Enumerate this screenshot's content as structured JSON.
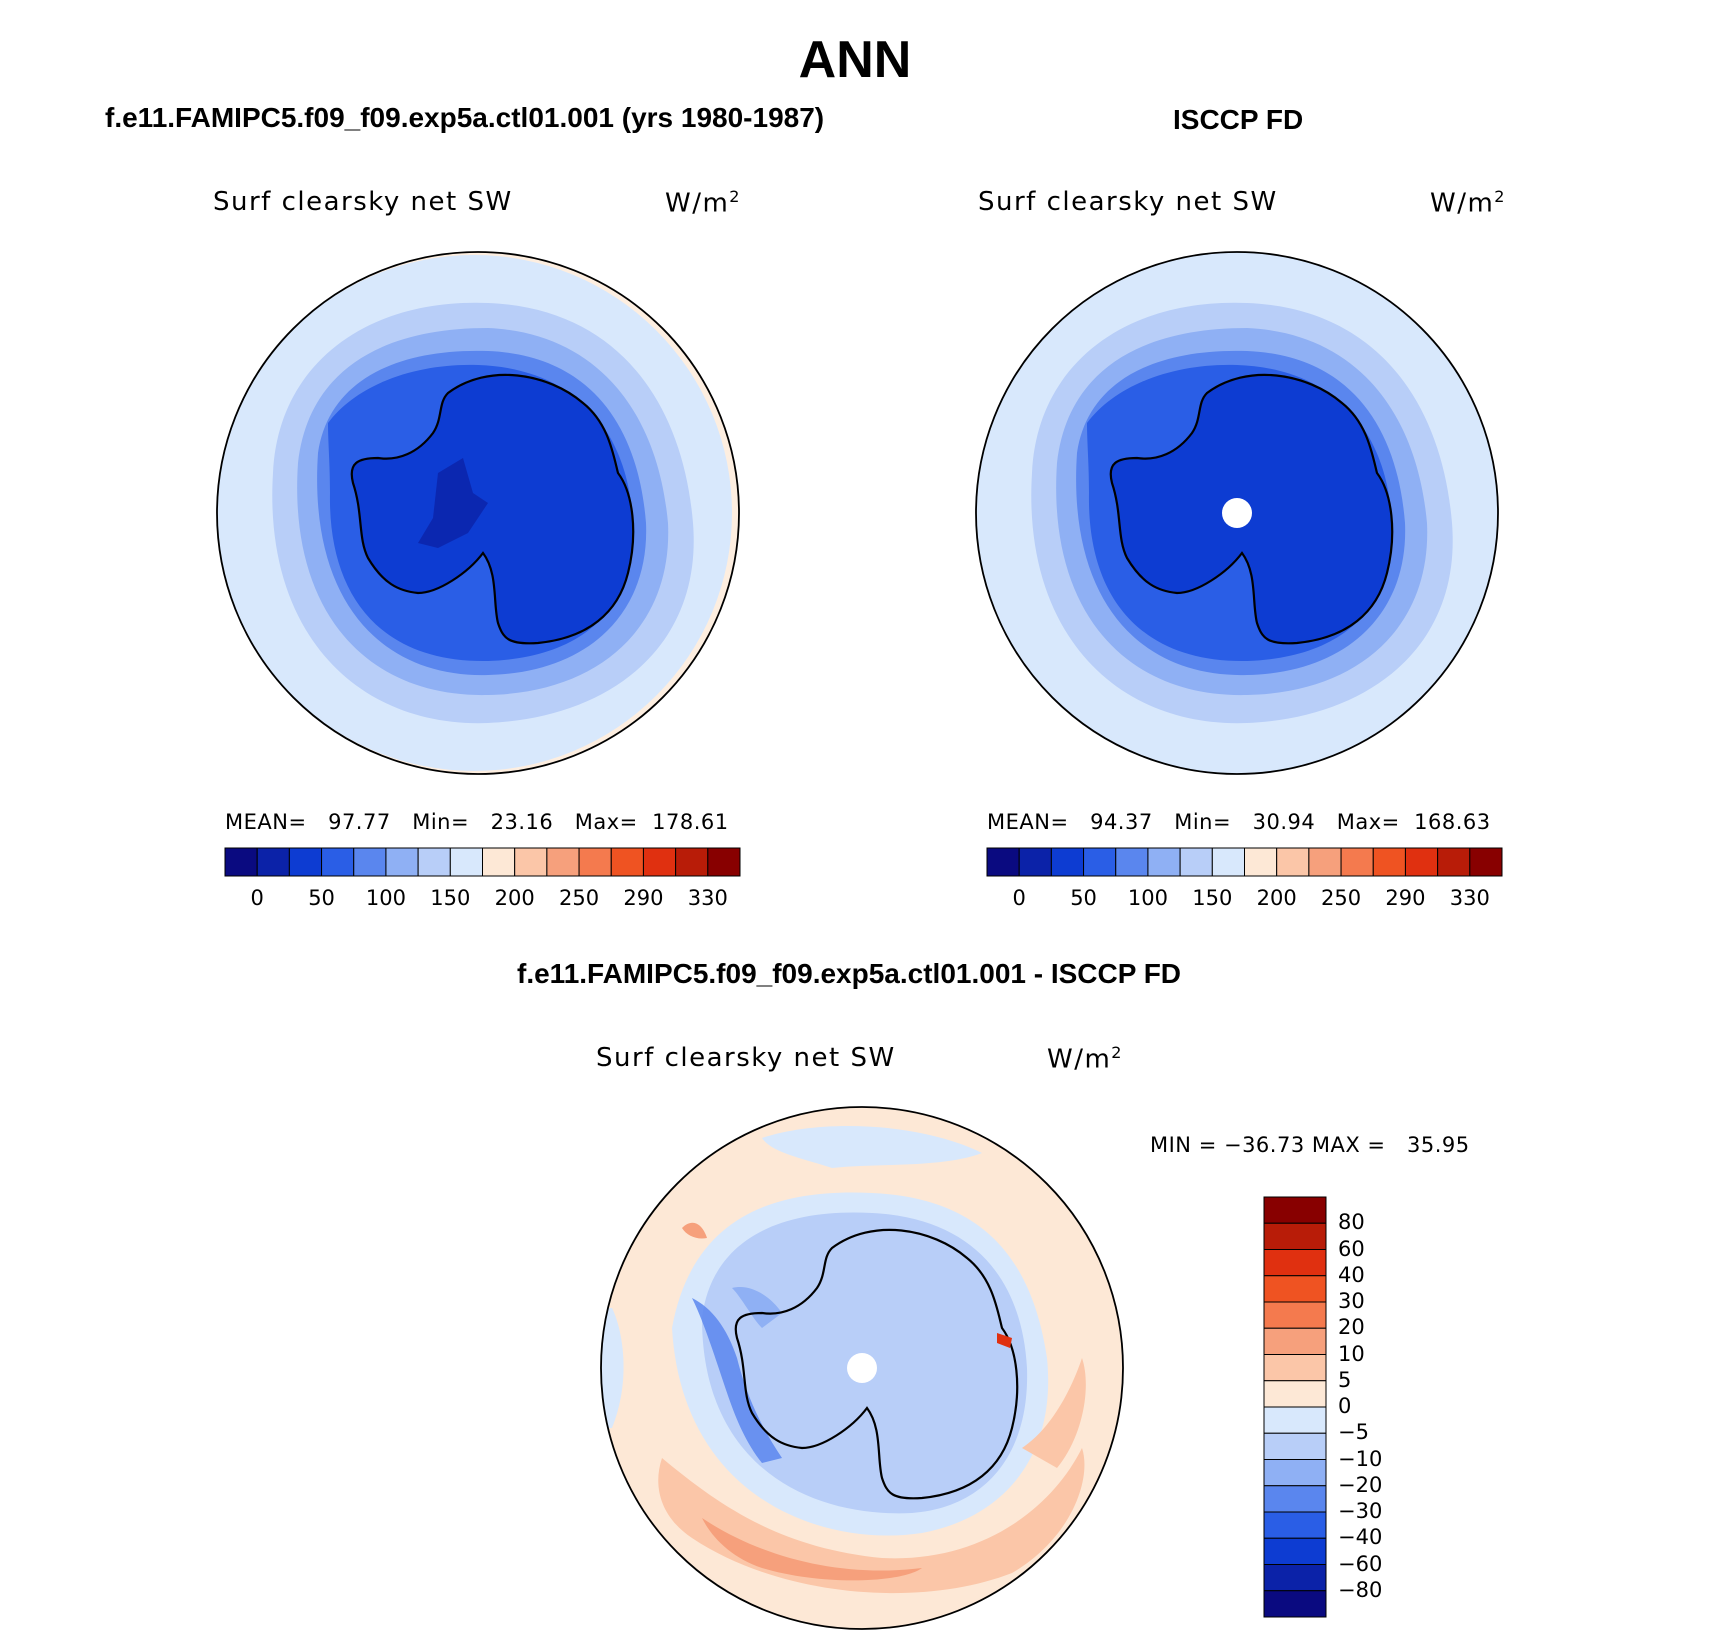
{
  "title": "ANN",
  "panels": {
    "model": {
      "heading": "f.e11.FAMIPC5.f09_f09.exp5a.ctl01.001 (yrs 1980-1987)",
      "variable": "Surf clearsky net SW",
      "units_base": "W/m",
      "units_exp": "2",
      "stats_text": "MEAN=   97.77   Min=   23.16   Max=  178.61"
    },
    "obs": {
      "heading": "ISCCP FD",
      "variable": "Surf clearsky net SW",
      "units_base": "W/m",
      "units_exp": "2",
      "stats_text": "MEAN=   94.37   Min=   30.94   Max=  168.63"
    },
    "diff": {
      "heading": "f.e11.FAMIPC5.f09_f09.exp5a.ctl01.001 - ISCCP FD",
      "variable": "Surf clearsky net SW",
      "units_base": "W/m",
      "units_exp": "2",
      "stats_text": "MIN = −36.73 MAX =   35.95"
    }
  },
  "chart_data": [
    {
      "type": "heatmap",
      "projection": "south-polar stereographic",
      "title": "Surf clearsky net SW",
      "units": "W/m2",
      "mean": 97.77,
      "min": 23.16,
      "max": 178.61,
      "colorbar": {
        "orientation": "horizontal",
        "tick_labels": [
          "0",
          "50",
          "100",
          "150",
          "200",
          "250",
          "290",
          "330"
        ],
        "colors": [
          "#0a0a80",
          "#0b22a8",
          "#0d3cd2",
          "#2a5ee6",
          "#5a86ee",
          "#8fb0f4",
          "#b8cef8",
          "#d8e8fc",
          "#fde8d6",
          "#fbc6a8",
          "#f6a07c",
          "#f47a4e",
          "#ef5322",
          "#e03010",
          "#b81c08",
          "#880000"
        ]
      }
    },
    {
      "type": "heatmap",
      "projection": "south-polar stereographic",
      "title": "Surf clearsky net SW",
      "units": "W/m2",
      "mean": 94.37,
      "min": 30.94,
      "max": 168.63,
      "colorbar": {
        "orientation": "horizontal",
        "tick_labels": [
          "0",
          "50",
          "100",
          "150",
          "200",
          "250",
          "290",
          "330"
        ],
        "colors": [
          "#0a0a80",
          "#0b22a8",
          "#0d3cd2",
          "#2a5ee6",
          "#5a86ee",
          "#8fb0f4",
          "#b8cef8",
          "#d8e8fc",
          "#fde8d6",
          "#fbc6a8",
          "#f6a07c",
          "#f47a4e",
          "#ef5322",
          "#e03010",
          "#b81c08",
          "#880000"
        ]
      }
    },
    {
      "type": "heatmap",
      "projection": "south-polar stereographic",
      "title": "Surf clearsky net SW",
      "units": "W/m2",
      "min": -36.73,
      "max": 35.95,
      "colorbar": {
        "orientation": "vertical",
        "tick_labels": [
          "80",
          "60",
          "40",
          "30",
          "20",
          "10",
          "5",
          "0",
          "−5",
          "−10",
          "−20",
          "−30",
          "−40",
          "−60",
          "−80"
        ],
        "colors": [
          "#880000",
          "#b81c08",
          "#e03010",
          "#ef5322",
          "#f47a4e",
          "#f6a07c",
          "#fbc6a8",
          "#fde8d6",
          "#d8e8fc",
          "#b8cef8",
          "#8fb0f4",
          "#5a86ee",
          "#2a5ee6",
          "#0d3cd2",
          "#0b22a8",
          "#0a0a80"
        ]
      }
    }
  ]
}
